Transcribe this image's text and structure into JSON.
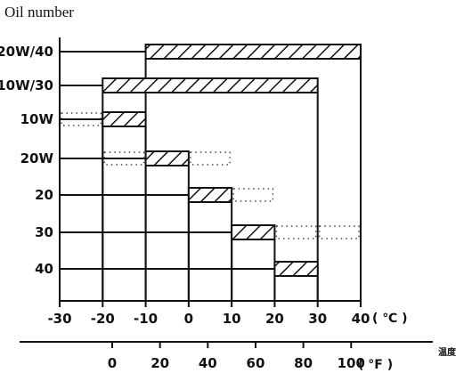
{
  "chart_data": {
    "type": "bar",
    "title": "Oil number",
    "categories": [
      "20W/40",
      "10W/30",
      "10W",
      "20W",
      "20",
      "30",
      "40"
    ],
    "ranges_celsius": [
      {
        "category": "20W/40",
        "min": -10,
        "max": 40
      },
      {
        "category": "10W/30",
        "min": -20,
        "max": 30
      },
      {
        "category": "10W",
        "min": -20,
        "max": -10
      },
      {
        "category": "20W",
        "min": -10,
        "max": 0
      },
      {
        "category": "20",
        "min": 0,
        "max": 10
      },
      {
        "category": "30",
        "min": 10,
        "max": 20
      },
      {
        "category": "40",
        "min": 20,
        "max": 30
      }
    ],
    "dotted_extensions_celsius": [
      {
        "category": "10W",
        "min": -30,
        "max": -20
      },
      {
        "category": "20W",
        "min": -20,
        "max": -10
      },
      {
        "category": "20W",
        "min": 0,
        "max": 10
      },
      {
        "category": "20",
        "min": 10,
        "max": 20
      },
      {
        "category": "30",
        "min": 20,
        "max": 30
      },
      {
        "category": "30",
        "min": 30,
        "max": 40
      }
    ],
    "celsius_ticks": [
      "-30",
      "-20",
      "-10",
      "0",
      "10",
      "20",
      "30",
      "40"
    ],
    "celsius_unit": "( ℃ )",
    "fahrenheit_ticks": [
      "0",
      "20",
      "40",
      "60",
      "80",
      "100"
    ],
    "fahrenheit_unit": "( °F )",
    "axis_label": "温度",
    "xlim": [
      -30,
      40
    ]
  }
}
